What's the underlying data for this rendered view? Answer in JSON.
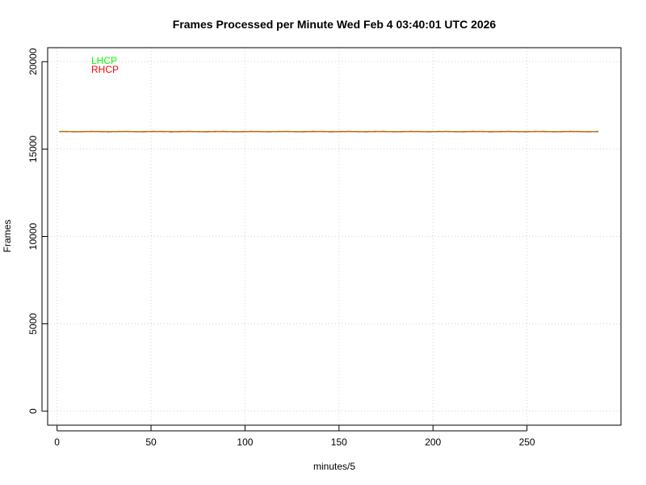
{
  "chart_data": {
    "type": "line",
    "title": "Frames Processed per Minute Wed Feb 4 03:40:01 UTC 2026",
    "xlabel": "minutes/5",
    "ylabel": "Frames",
    "xlim": [
      -5,
      300
    ],
    "ylim": [
      -800,
      20800
    ],
    "x_ticks": [
      0,
      50,
      100,
      150,
      200,
      250
    ],
    "y_ticks": [
      0,
      5000,
      10000,
      15000,
      20000
    ],
    "grid": true,
    "grid_style": "dotted",
    "legend_position": "top-left",
    "x_start": 1,
    "x_end": 288,
    "series": [
      {
        "name": "LHCP",
        "color": "#00ff00",
        "level": 16000,
        "jitter": 20
      },
      {
        "name": "RHCP",
        "color": "#ff0000",
        "level": 16000,
        "jitter": 20
      }
    ],
    "overlap_color": "#b8860b"
  }
}
